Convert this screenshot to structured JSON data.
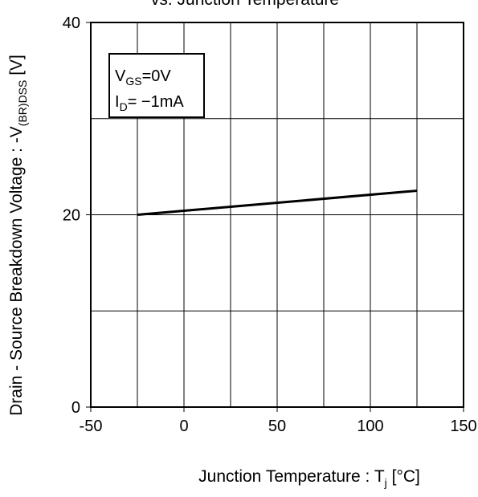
{
  "chart_data": {
    "type": "line",
    "title": "vs. Junction Temperature",
    "xlabel": {
      "main": "Junction Temperature : T",
      "sub": "j",
      "unit": " [°C]"
    },
    "ylabel": {
      "main": "Drain - Source Breakdown Voltage : -V",
      "sub": "(BR)DSS",
      "unit": " [V]"
    },
    "xlim": [
      -50,
      150
    ],
    "ylim": [
      0,
      40
    ],
    "x_ticks": [
      -50,
      0,
      50,
      100,
      150
    ],
    "y_ticks": [
      0,
      20,
      40
    ],
    "x_grid": [
      -25,
      0,
      25,
      50,
      75,
      100,
      125
    ],
    "y_grid": [
      10,
      20,
      30
    ],
    "grid": true,
    "legend_placement": "top-left",
    "conditions": [
      {
        "main": "V",
        "sub": "GS",
        "rest": "=0V"
      },
      {
        "main": "I",
        "sub": "D",
        "rest": "= −1mA"
      }
    ],
    "series": [
      {
        "x": [
          -25,
          125
        ],
        "y": [
          20.0,
          22.5
        ],
        "color": "#000000"
      }
    ]
  }
}
